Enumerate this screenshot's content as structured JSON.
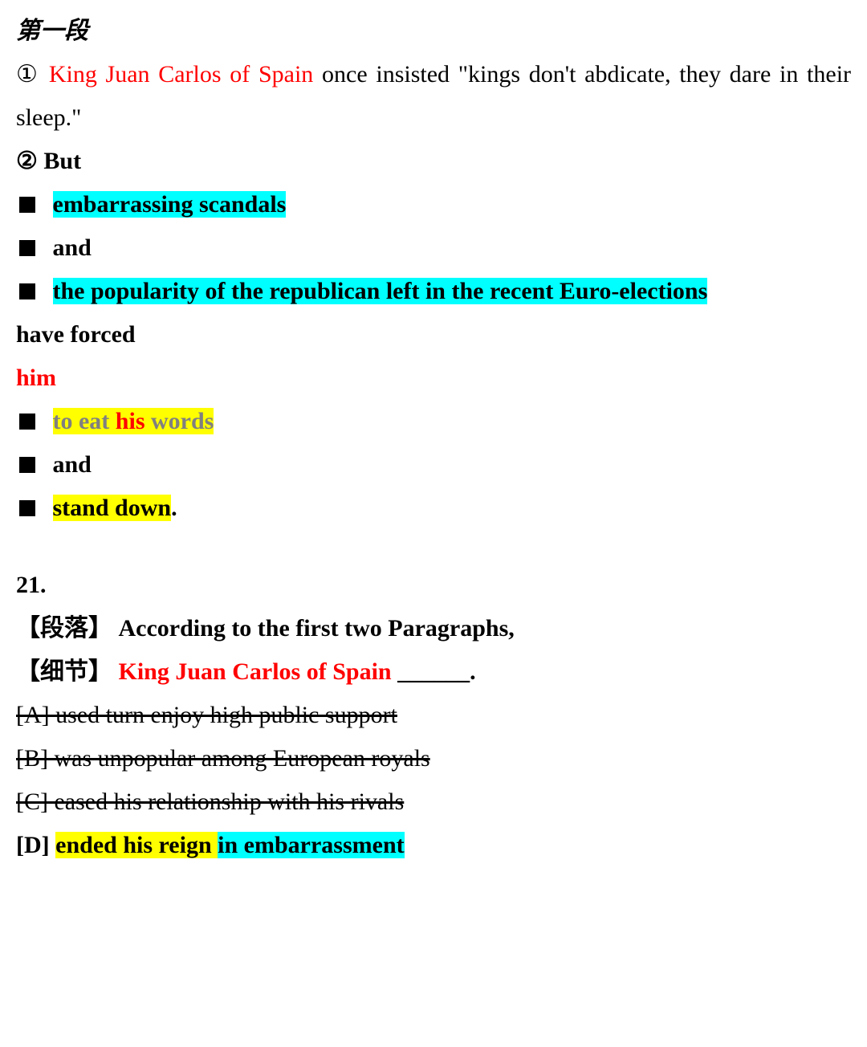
{
  "colors": {
    "red": "#ff0000",
    "gray": "#808080",
    "cyan_highlight": "#00ffff",
    "yellow_highlight": "#ffff00",
    "black": "#000000",
    "background": "#ffffff"
  },
  "font": {
    "family": "Times New Roman / SimSun",
    "size_pt": 22,
    "line_height": 1.8
  },
  "heading": "第一段",
  "p1": {
    "marker": "①",
    "s1": "King Juan Carlos of Spain",
    "s2": " once insisted \"kings don't abdicate, they dare in their sleep.\""
  },
  "p2": {
    "marker": "②",
    "but": " But",
    "b1": "embarrassing scandals",
    "b2": "and",
    "b3": "the popularity of the republican left in the recent Euro-elections",
    "have_forced": "have forced",
    "him": "him",
    "eat_pre": "to eat ",
    "eat_his": "his",
    "eat_post": " words",
    "and2": "and",
    "stand_down": "stand down",
    "period": "."
  },
  "q": {
    "num": "21.",
    "para_tag": "【段落】",
    "para_text": "According to the first two Paragraphs,",
    "detail_tag": "【细节】",
    "detail_subj": "King Juan Carlos of Spain",
    "blank": " ______.",
    "optA": "[A] used turn enjoy high public support",
    "optB": "[B] was unpopular among European royals",
    "optC": "[C] eased his relationship with his rivals",
    "optD_pre": "[D] ",
    "optD_y": "ended his reign ",
    "optD_c": "in embarrassment"
  }
}
